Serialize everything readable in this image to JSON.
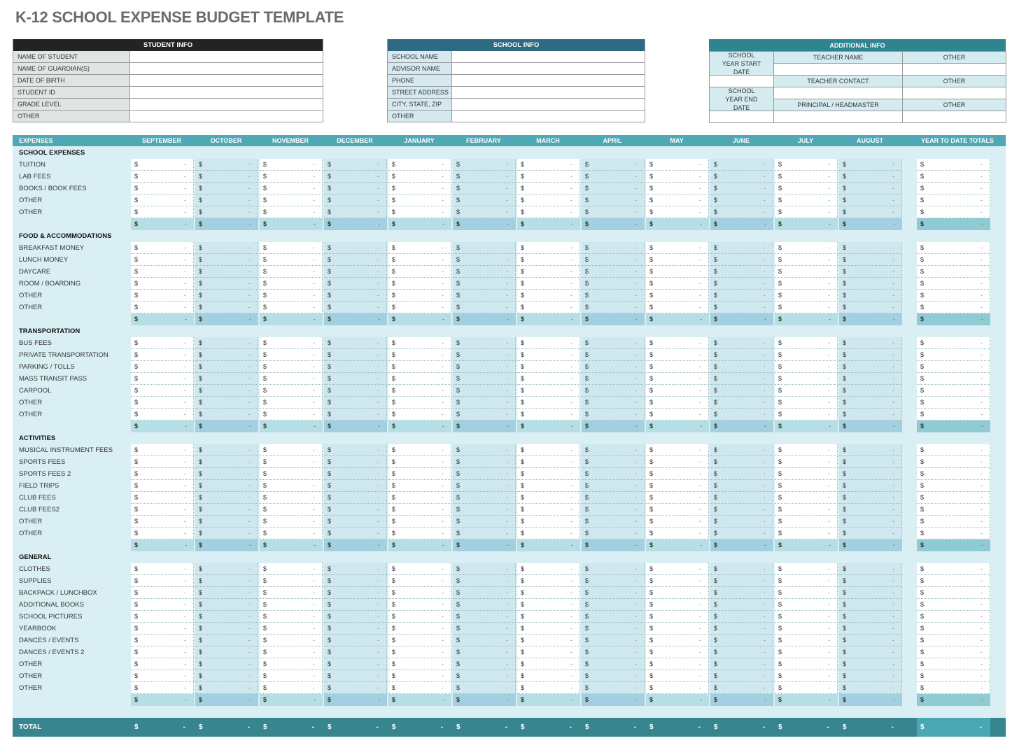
{
  "title": "K-12 SCHOOL EXPENSE BUDGET TEMPLATE",
  "colors": {
    "student_header": "#232326",
    "school_header": "#2c6b82",
    "additional_header": "#2e858f",
    "sheet_bg": "#daeff3",
    "header_bg": "#4fa9b5",
    "total_bg": "#37868f",
    "ytd_total_bg": "#4aa8b5"
  },
  "student_info": {
    "header": "STUDENT INFO",
    "fields": [
      "NAME OF STUDENT",
      "NAME OF GUARDIAN(S)",
      "DATE OF BIRTH",
      "STUDENT ID",
      "GRADE LEVEL",
      "OTHER"
    ]
  },
  "school_info": {
    "header": "SCHOOL INFO",
    "fields": [
      "SCHOOL NAME",
      "ADVISOR NAME",
      "PHONE",
      "STREET ADDRESS",
      "CITY, STATE, ZIP",
      "OTHER"
    ]
  },
  "additional_info": {
    "header": "ADDITIONAL INFO",
    "start_date": "SCHOOL YEAR START DATE",
    "end_date": "SCHOOL YEAR END DATE",
    "teacher_name": "TEACHER NAME",
    "teacher_contact": "TEACHER CONTACT",
    "principal": "PRINCIPAL / HEADMASTER",
    "other": "OTHER"
  },
  "budget": {
    "expenses_header": "EXPENSES",
    "months": [
      "SEPTEMBER",
      "OCTOBER",
      "NOVEMBER",
      "DECEMBER",
      "JANUARY",
      "FEBRUARY",
      "MARCH",
      "APRIL",
      "MAY",
      "JUNE",
      "JULY",
      "AUGUST"
    ],
    "ytd_header": "YEAR TO DATE TOTALS",
    "currency": "$",
    "empty_value": "-",
    "sections": [
      {
        "name": "SCHOOL EXPENSES",
        "items": [
          "TUITION",
          "LAB FEES",
          "BOOKS / BOOK FEES",
          "OTHER",
          "OTHER"
        ]
      },
      {
        "name": "FOOD & ACCOMMODATIONS",
        "items": [
          "BREAKFAST MONEY",
          "LUNCH MONEY",
          "DAYCARE",
          "ROOM / BOARDING",
          "OTHER",
          "OTHER"
        ]
      },
      {
        "name": "TRANSPORTATION",
        "items": [
          "BUS FEES",
          "PRIVATE TRANSPORTATION",
          "PARKING / TOLLS",
          "MASS TRANSIT PASS",
          "CARPOOL",
          "OTHER",
          "OTHER"
        ]
      },
      {
        "name": "ACTIVITIES",
        "items": [
          "MUSICAL INSTRUMENT FEES",
          "SPORTS FEES",
          "SPORTS FEES 2",
          "FIELD TRIPS",
          "CLUB FEES",
          "CLUB FEES2",
          "OTHER",
          "OTHER"
        ]
      },
      {
        "name": "GENERAL",
        "items": [
          "CLOTHES",
          "SUPPLIES",
          "BACKPACK / LUNCHBOX",
          "ADDITIONAL BOOKS",
          "SCHOOL PICTURES",
          "YEARBOOK",
          "DANCES / EVENTS",
          "DANCES / EVENTS 2",
          "OTHER",
          "OTHER",
          "OTHER"
        ]
      }
    ],
    "total_label": "TOTAL"
  }
}
